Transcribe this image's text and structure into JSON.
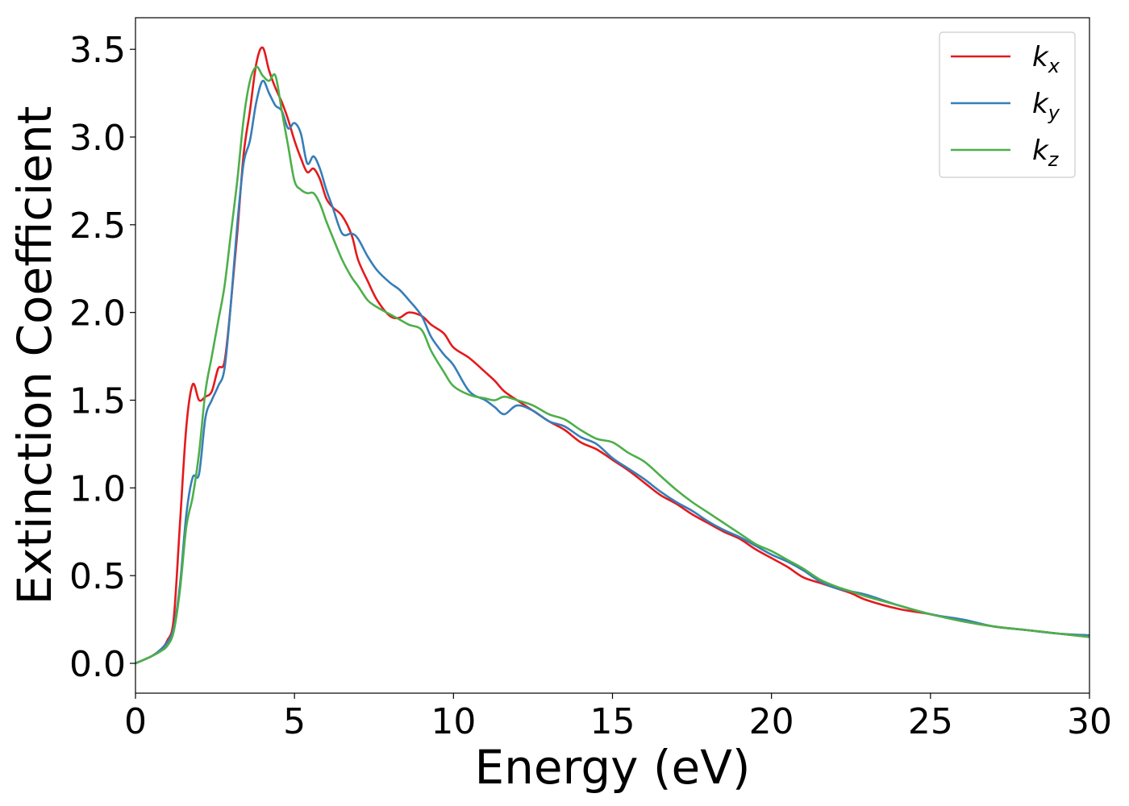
{
  "chart_data": {
    "type": "line",
    "title": "",
    "xlabel": "Energy (eV)",
    "ylabel": "Extinction Coefficient",
    "xlim": [
      0,
      30
    ],
    "ylim": [
      -0.17,
      3.68
    ],
    "xticks": [
      0,
      5,
      10,
      15,
      20,
      25,
      30
    ],
    "xtick_labels": [
      "0",
      "5",
      "10",
      "15",
      "20",
      "25",
      "30"
    ],
    "yticks": [
      0.0,
      0.5,
      1.0,
      1.5,
      2.0,
      2.5,
      3.0,
      3.5
    ],
    "ytick_labels": [
      "0.0",
      "0.5",
      "1.0",
      "1.5",
      "2.0",
      "2.5",
      "3.0",
      "3.5"
    ],
    "grid": false,
    "legend_position": "top-right",
    "series": [
      {
        "name": "k",
        "subscript": "x",
        "color": "#e41a1c",
        "x": [
          0,
          0.5,
          0.8,
          1.0,
          1.2,
          1.4,
          1.6,
          1.8,
          2.0,
          2.2,
          2.4,
          2.6,
          2.8,
          3.0,
          3.2,
          3.4,
          3.6,
          3.8,
          4.0,
          4.2,
          4.4,
          4.6,
          4.8,
          5.0,
          5.2,
          5.4,
          5.6,
          5.8,
          6.0,
          6.2,
          6.5,
          6.8,
          7.0,
          7.3,
          7.6,
          8.0,
          8.3,
          8.6,
          9.0,
          9.3,
          9.7,
          10.0,
          10.5,
          11.0,
          11.3,
          11.6,
          12.0,
          12.5,
          13.0,
          13.5,
          14.0,
          14.5,
          15.0,
          15.5,
          16.0,
          16.5,
          17.0,
          17.5,
          18.0,
          18.5,
          19.0,
          19.5,
          20.0,
          20.5,
          21.0,
          21.5,
          22.0,
          22.5,
          23.0,
          24.0,
          25.0,
          26.0,
          27.0,
          28.0,
          29.0,
          30.0
        ],
        "y": [
          0.0,
          0.04,
          0.08,
          0.13,
          0.25,
          0.8,
          1.35,
          1.59,
          1.5,
          1.52,
          1.55,
          1.68,
          1.72,
          2.05,
          2.45,
          2.9,
          3.15,
          3.42,
          3.51,
          3.38,
          3.28,
          3.2,
          3.1,
          2.98,
          2.88,
          2.8,
          2.82,
          2.76,
          2.65,
          2.6,
          2.55,
          2.44,
          2.3,
          2.18,
          2.07,
          1.98,
          1.97,
          2.0,
          1.98,
          1.93,
          1.88,
          1.8,
          1.74,
          1.66,
          1.61,
          1.55,
          1.5,
          1.44,
          1.38,
          1.33,
          1.26,
          1.22,
          1.16,
          1.1,
          1.03,
          0.96,
          0.91,
          0.85,
          0.8,
          0.75,
          0.71,
          0.65,
          0.6,
          0.55,
          0.49,
          0.46,
          0.43,
          0.4,
          0.36,
          0.31,
          0.28,
          0.24,
          0.21,
          0.19,
          0.17,
          0.15
        ]
      },
      {
        "name": "k",
        "subscript": "y",
        "color": "#377eb8",
        "x": [
          0,
          0.5,
          0.8,
          1.0,
          1.2,
          1.4,
          1.6,
          1.8,
          2.0,
          2.2,
          2.4,
          2.6,
          2.8,
          3.0,
          3.2,
          3.4,
          3.6,
          3.8,
          4.0,
          4.2,
          4.4,
          4.6,
          4.8,
          5.0,
          5.2,
          5.4,
          5.6,
          5.8,
          6.0,
          6.2,
          6.5,
          6.8,
          7.0,
          7.3,
          7.6,
          8.0,
          8.3,
          8.6,
          9.0,
          9.3,
          9.7,
          10.0,
          10.5,
          11.0,
          11.3,
          11.6,
          12.0,
          12.5,
          13.0,
          13.5,
          14.0,
          14.5,
          15.0,
          15.5,
          16.0,
          16.5,
          17.0,
          17.5,
          18.0,
          18.5,
          19.0,
          19.5,
          20.0,
          20.5,
          21.0,
          21.5,
          22.0,
          22.5,
          23.0,
          24.0,
          25.0,
          26.0,
          27.0,
          28.0,
          29.0,
          30.0
        ],
        "y": [
          0.0,
          0.04,
          0.08,
          0.12,
          0.2,
          0.45,
          0.85,
          1.06,
          1.08,
          1.4,
          1.5,
          1.58,
          1.68,
          2.05,
          2.5,
          2.85,
          2.98,
          3.2,
          3.32,
          3.25,
          3.18,
          3.15,
          3.05,
          3.08,
          3.02,
          2.85,
          2.89,
          2.82,
          2.7,
          2.6,
          2.45,
          2.45,
          2.42,
          2.32,
          2.24,
          2.17,
          2.13,
          2.07,
          1.98,
          1.86,
          1.76,
          1.7,
          1.55,
          1.5,
          1.46,
          1.42,
          1.47,
          1.44,
          1.38,
          1.35,
          1.29,
          1.25,
          1.17,
          1.11,
          1.05,
          0.98,
          0.92,
          0.87,
          0.81,
          0.76,
          0.72,
          0.67,
          0.62,
          0.58,
          0.53,
          0.47,
          0.43,
          0.41,
          0.39,
          0.33,
          0.28,
          0.25,
          0.21,
          0.19,
          0.17,
          0.16
        ]
      },
      {
        "name": "k",
        "subscript": "z",
        "color": "#4daf4a",
        "x": [
          0,
          0.5,
          0.8,
          1.0,
          1.2,
          1.4,
          1.6,
          1.8,
          2.0,
          2.2,
          2.4,
          2.6,
          2.8,
          3.0,
          3.2,
          3.4,
          3.6,
          3.8,
          4.0,
          4.2,
          4.4,
          4.6,
          4.8,
          5.0,
          5.2,
          5.4,
          5.6,
          5.8,
          6.0,
          6.2,
          6.5,
          6.8,
          7.0,
          7.3,
          7.6,
          8.0,
          8.3,
          8.6,
          9.0,
          9.3,
          9.7,
          10.0,
          10.5,
          11.0,
          11.3,
          11.6,
          12.0,
          12.5,
          13.0,
          13.5,
          14.0,
          14.5,
          15.0,
          15.5,
          16.0,
          16.5,
          17.0,
          17.5,
          18.0,
          18.5,
          19.0,
          19.5,
          20.0,
          20.5,
          21.0,
          21.5,
          22.0,
          22.5,
          23.0,
          24.0,
          25.0,
          26.0,
          27.0,
          28.0,
          29.0,
          30.0
        ],
        "y": [
          0.0,
          0.04,
          0.07,
          0.1,
          0.18,
          0.42,
          0.78,
          0.95,
          1.2,
          1.55,
          1.75,
          1.95,
          2.15,
          2.45,
          2.75,
          3.1,
          3.32,
          3.4,
          3.35,
          3.32,
          3.35,
          3.15,
          2.95,
          2.75,
          2.7,
          2.68,
          2.68,
          2.62,
          2.52,
          2.43,
          2.3,
          2.2,
          2.15,
          2.07,
          2.03,
          1.99,
          1.96,
          1.93,
          1.9,
          1.78,
          1.66,
          1.58,
          1.53,
          1.51,
          1.5,
          1.52,
          1.5,
          1.47,
          1.42,
          1.39,
          1.33,
          1.28,
          1.26,
          1.2,
          1.15,
          1.07,
          0.99,
          0.92,
          0.86,
          0.8,
          0.74,
          0.68,
          0.64,
          0.59,
          0.54,
          0.48,
          0.44,
          0.41,
          0.38,
          0.33,
          0.28,
          0.24,
          0.21,
          0.19,
          0.17,
          0.15
        ]
      }
    ]
  }
}
